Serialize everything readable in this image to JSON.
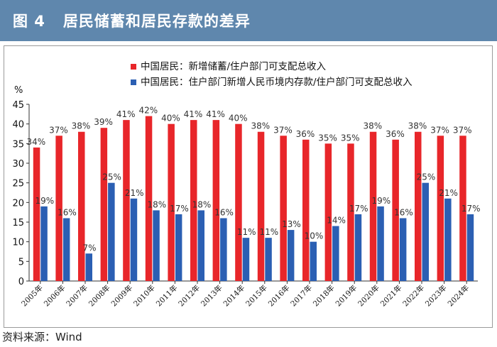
{
  "figure": {
    "title": "图 4   居民储蓄和居民存款的差异",
    "source": "资料来源：Wind"
  },
  "colors": {
    "header_bg": "#5f87ad",
    "series1": "#e8262a",
    "series2": "#2b5fb3"
  },
  "chart_data": {
    "type": "bar",
    "title": "",
    "xlabel": "",
    "ylabel": "%",
    "ylim": [
      0,
      45
    ],
    "yticks": [
      "0",
      "5",
      "10",
      "15",
      "20",
      "25",
      "30",
      "35",
      "40",
      "45"
    ],
    "grid": false,
    "legend_position": "top",
    "categories": [
      "2005年",
      "2006年",
      "2007年",
      "2008年",
      "2009年",
      "2010年",
      "2011年",
      "2012年",
      "2013年",
      "2014年",
      "2015年",
      "2016年",
      "2017年",
      "2018年",
      "2019年",
      "2020年",
      "2021年",
      "2022年",
      "2023年",
      "2024年"
    ],
    "series": [
      {
        "name": "中国居民：新增储蓄/住户部门可支配总收入",
        "color": "#e8262a",
        "values": [
          34,
          37,
          38,
          39,
          41,
          42,
          40,
          41,
          41,
          40,
          38,
          37,
          36,
          35,
          35,
          38,
          36,
          38,
          37,
          37
        ],
        "labels": [
          "34%",
          "37%",
          "38%",
          "39%",
          "41%",
          "42%",
          "40%",
          "41%",
          "41%",
          "40%",
          "38%",
          "37%",
          "36%",
          "35%",
          "35%",
          "38%",
          "36%",
          "38%",
          "37%",
          "37%"
        ]
      },
      {
        "name": "中国居民：住户部门新增人民币境内存款/住户部门可支配总收入",
        "color": "#2b5fb3",
        "values": [
          19,
          16,
          7,
          25,
          21,
          18,
          17,
          18,
          16,
          11,
          11,
          13,
          10,
          14,
          17,
          19,
          16,
          25,
          21,
          17
        ],
        "labels": [
          "19%",
          "16%",
          "7%",
          "25%",
          "21%",
          "18%",
          "17%",
          "18%",
          "16%",
          "11%",
          "11%",
          "13%",
          "10%",
          "14%",
          "17%",
          "19%",
          "16%",
          "25%",
          "21%",
          "17%"
        ]
      }
    ]
  }
}
